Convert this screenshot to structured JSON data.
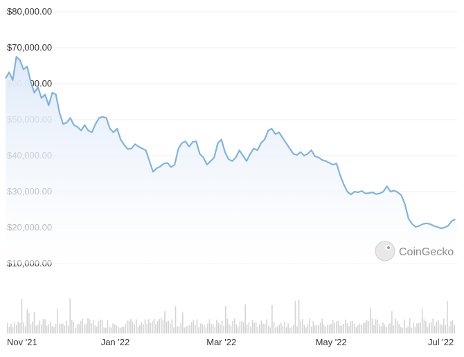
{
  "chart_data": {
    "type": "area",
    "y_tick_labels": [
      "$80,000.00",
      "$70,000.00",
      "$60,000.00",
      "$50,000.00",
      "$40,000.00",
      "$30,000.00",
      "$20,000.00",
      "$10,000.00"
    ],
    "y_ticks": [
      80000,
      70000,
      60000,
      50000,
      40000,
      30000,
      20000,
      10000
    ],
    "ylim": [
      10000,
      80000
    ],
    "x_tick_labels": [
      "Nov '21",
      "Jan '22",
      "Mar '22",
      "May '22",
      "Jul '22"
    ],
    "x_ticks": [
      "2021-11-01",
      "2022-01-01",
      "2022-03-01",
      "2022-05-01",
      "2022-07-01"
    ],
    "xlim": [
      "2021-11-01",
      "2022-07-10"
    ],
    "grid": true,
    "line_color": "#7fb3e3",
    "fill_color_top": "#dfeaf8",
    "fill_color_bottom": "#ffffff",
    "series": [
      {
        "dates": [
          "2021-11-01",
          "2021-11-03",
          "2021-11-05",
          "2021-11-07",
          "2021-11-09",
          "2021-11-11",
          "2021-11-13",
          "2021-11-15",
          "2021-11-17",
          "2021-11-19",
          "2021-11-21",
          "2021-11-23",
          "2021-11-25",
          "2021-11-27",
          "2021-11-29",
          "2021-12-01",
          "2021-12-03",
          "2021-12-05",
          "2021-12-07",
          "2021-12-09",
          "2021-12-11",
          "2021-12-13",
          "2021-12-15",
          "2021-12-17",
          "2021-12-19",
          "2021-12-21",
          "2021-12-23",
          "2021-12-25",
          "2021-12-27",
          "2021-12-29",
          "2021-12-31",
          "2022-01-02",
          "2022-01-04",
          "2022-01-06",
          "2022-01-08",
          "2022-01-10",
          "2022-01-12",
          "2022-01-14",
          "2022-01-16",
          "2022-01-18",
          "2022-01-20",
          "2022-01-22",
          "2022-01-24",
          "2022-01-26",
          "2022-01-28",
          "2022-01-30",
          "2022-02-01",
          "2022-02-03",
          "2022-02-05",
          "2022-02-07",
          "2022-02-09",
          "2022-02-11",
          "2022-02-13",
          "2022-02-15",
          "2022-02-17",
          "2022-02-19",
          "2022-02-21",
          "2022-02-23",
          "2022-02-25",
          "2022-02-27",
          "2022-03-01",
          "2022-03-03",
          "2022-03-05",
          "2022-03-07",
          "2022-03-09",
          "2022-03-11",
          "2022-03-13",
          "2022-03-15",
          "2022-03-17",
          "2022-03-19",
          "2022-03-21",
          "2022-03-23",
          "2022-03-25",
          "2022-03-27",
          "2022-03-29",
          "2022-03-31",
          "2022-04-02",
          "2022-04-04",
          "2022-04-06",
          "2022-04-08",
          "2022-04-10",
          "2022-04-12",
          "2022-04-14",
          "2022-04-16",
          "2022-04-18",
          "2022-04-20",
          "2022-04-22",
          "2022-04-24",
          "2022-04-26",
          "2022-04-28",
          "2022-04-30",
          "2022-05-02",
          "2022-05-04",
          "2022-05-06",
          "2022-05-08",
          "2022-05-10",
          "2022-05-12",
          "2022-05-14",
          "2022-05-16",
          "2022-05-18",
          "2022-05-20",
          "2022-05-22",
          "2022-05-24",
          "2022-05-26",
          "2022-05-28",
          "2022-05-30",
          "2022-06-01",
          "2022-06-03",
          "2022-06-05",
          "2022-06-07",
          "2022-06-09",
          "2022-06-11",
          "2022-06-13",
          "2022-06-15",
          "2022-06-17",
          "2022-06-19",
          "2022-06-21",
          "2022-06-23",
          "2022-06-25",
          "2022-06-27",
          "2022-06-29",
          "2022-07-01",
          "2022-07-03",
          "2022-07-05",
          "2022-07-07",
          "2022-07-09"
        ],
        "values": [
          61500,
          63200,
          61000,
          67500,
          66500,
          64000,
          64800,
          60500,
          57500,
          59000,
          56000,
          57000,
          54000,
          57500,
          57000,
          52000,
          48800,
          49200,
          50500,
          48500,
          48000,
          47000,
          48500,
          47000,
          46500,
          48800,
          50500,
          50800,
          50500,
          47500,
          46500,
          47500,
          44500,
          43000,
          41800,
          42000,
          43200,
          42500,
          42000,
          41500,
          38500,
          35500,
          36500,
          37000,
          37800,
          38000,
          36800,
          37500,
          41800,
          43500,
          44000,
          42500,
          43800,
          44000,
          40500,
          39500,
          37500,
          38500,
          39500,
          43500,
          44500,
          41000,
          39000,
          38500,
          39500,
          41500,
          40000,
          38500,
          40500,
          42000,
          41500,
          43500,
          44500,
          47000,
          47500,
          46000,
          46500,
          45000,
          43500,
          42000,
          40500,
          40200,
          41000,
          40000,
          40500,
          41500,
          39800,
          39500,
          38800,
          38500,
          38000,
          37500,
          37800,
          34500,
          32000,
          30000,
          29200,
          30000,
          29800,
          30200,
          29500,
          29600,
          29800,
          29300,
          29500,
          30000,
          31500,
          30000,
          30300,
          29800,
          29000,
          26500,
          22500,
          21000,
          20200,
          20500,
          21000,
          21200,
          21000,
          20500,
          20200,
          19800,
          20000,
          20500,
          21800,
          22300
        ]
      }
    ],
    "volume_bar_color": "#d4d4d4",
    "watermark": "CoinGecko"
  }
}
